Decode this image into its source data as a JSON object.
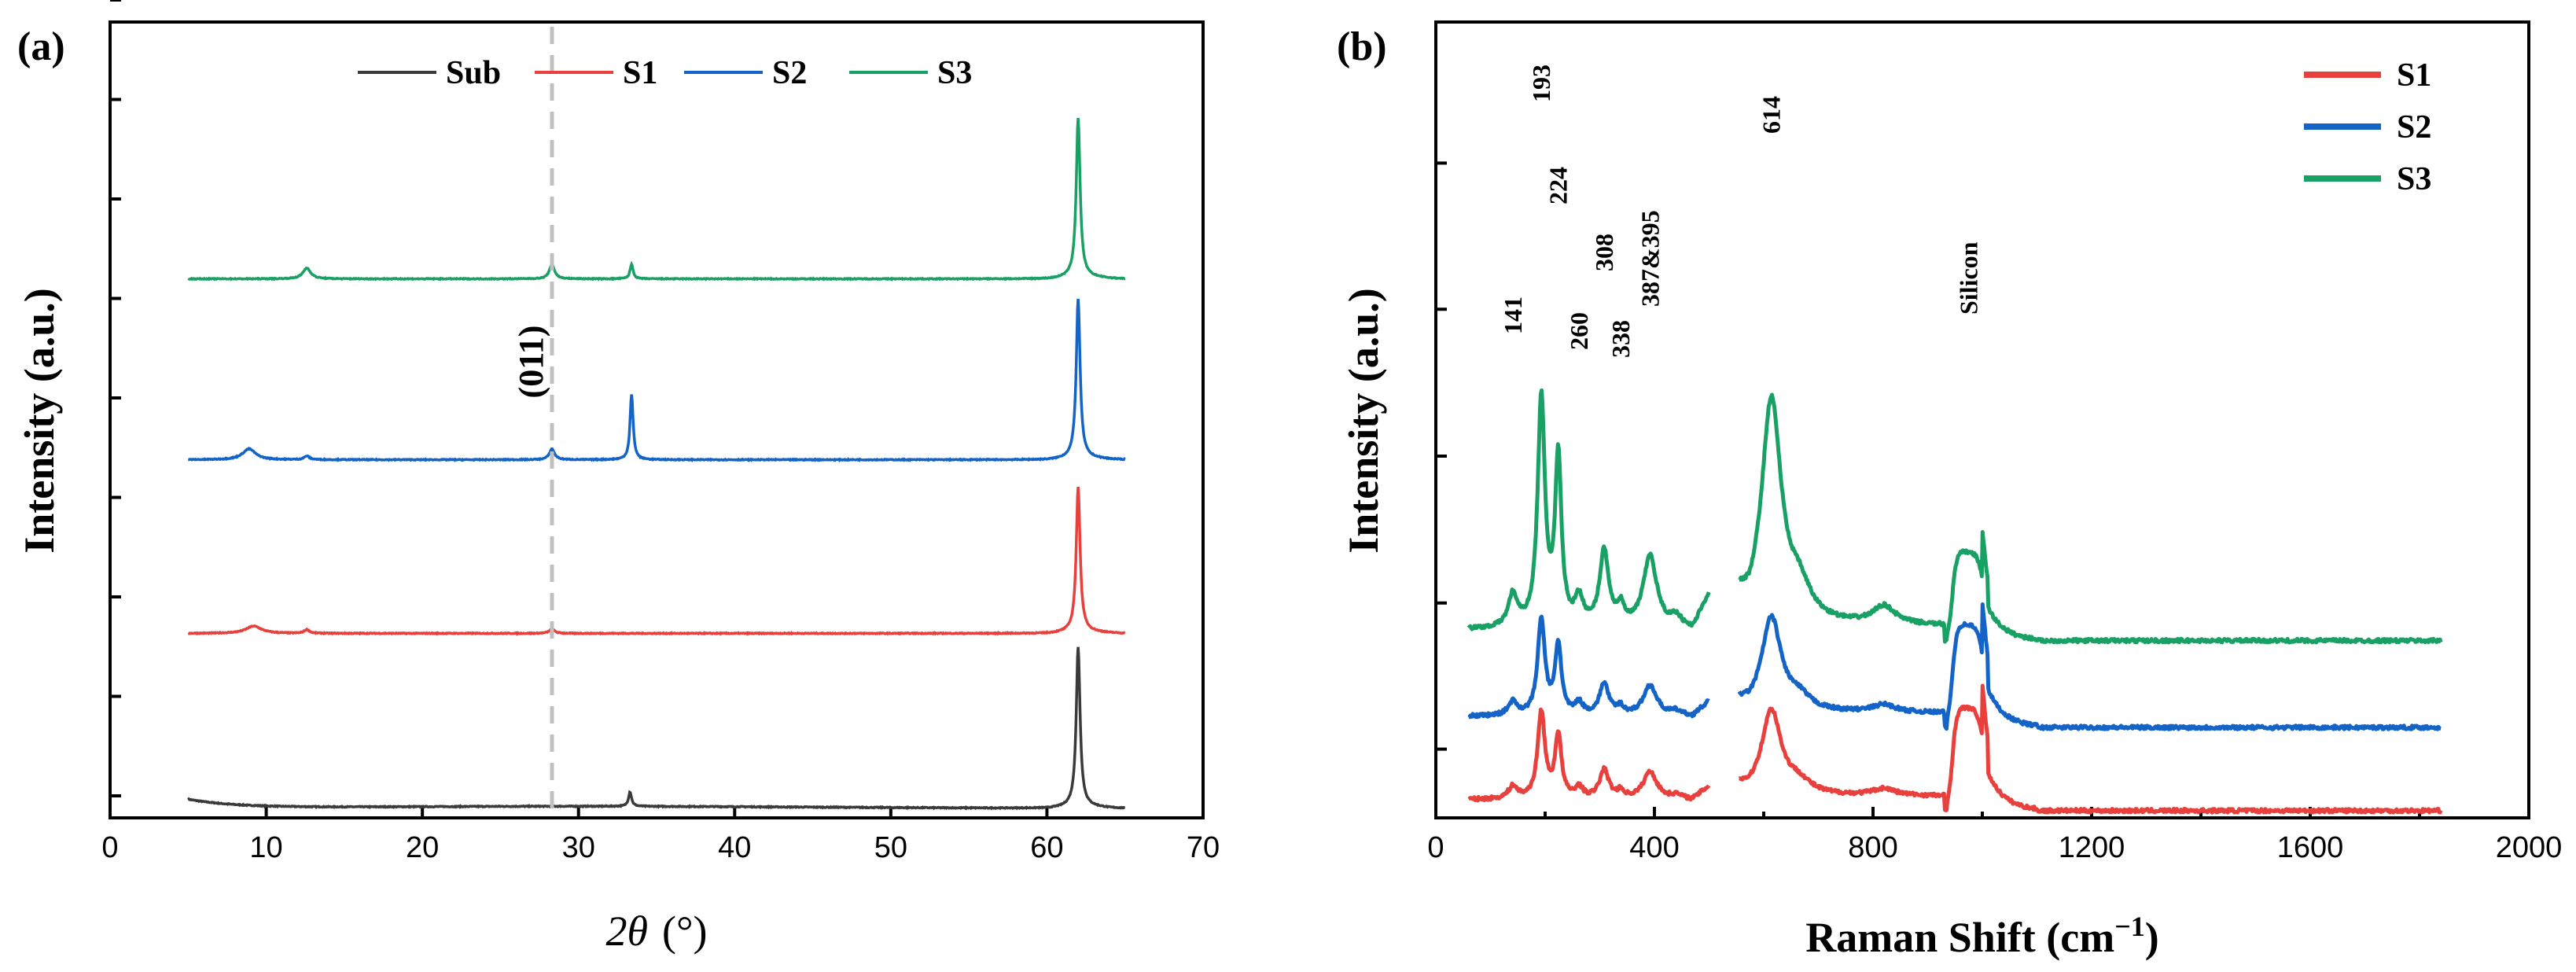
{
  "chart_data": [
    {
      "panel": "(a)",
      "type": "line",
      "xlabel_symbol": "2θ",
      "xlabel_unit": "(°)",
      "ylabel": "Intensity (a.u.)",
      "xlim": [
        0,
        70
      ],
      "xticks": [
        "0",
        "10",
        "20",
        "30",
        "40",
        "50",
        "60",
        "70"
      ],
      "ylim": [
        0,
        11
      ],
      "dashed_line_x": 28.3,
      "annotation": "(011)",
      "legend": [
        "Sub",
        "S1",
        "S2",
        "S3"
      ],
      "series": [
        {
          "name": "Sub",
          "color": "#3a3a3a",
          "offset": 0.15,
          "peaks": [
            {
              "x": 62.0,
              "h": 2.2,
              "w": 0.15
            },
            {
              "x": 33.3,
              "h": 0.2,
              "w": 0.12
            }
          ]
        },
        {
          "name": "S1",
          "color": "#e8403c",
          "offset": 2.55,
          "peaks": [
            {
              "x": 62.0,
              "h": 2.0,
              "w": 0.15
            },
            {
              "x": 9.2,
              "h": 0.1,
              "w": 0.6
            },
            {
              "x": 28.3,
              "h": 0.06,
              "w": 0.2
            },
            {
              "x": 12.6,
              "h": 0.05,
              "w": 0.2
            }
          ]
        },
        {
          "name": "S2",
          "color": "#1464c8",
          "offset": 4.95,
          "peaks": [
            {
              "x": 62.0,
              "h": 2.2,
              "w": 0.15
            },
            {
              "x": 33.4,
              "h": 0.9,
              "w": 0.12
            },
            {
              "x": 8.9,
              "h": 0.15,
              "w": 0.5
            },
            {
              "x": 28.3,
              "h": 0.15,
              "w": 0.2
            },
            {
              "x": 12.6,
              "h": 0.05,
              "w": 0.2
            }
          ]
        },
        {
          "name": "S3",
          "color": "#19a064",
          "offset": 7.45,
          "peaks": [
            {
              "x": 62.0,
              "h": 2.2,
              "w": 0.15
            },
            {
              "x": 12.6,
              "h": 0.15,
              "w": 0.3
            },
            {
              "x": 28.3,
              "h": 0.2,
              "w": 0.2
            },
            {
              "x": 33.4,
              "h": 0.2,
              "w": 0.12
            }
          ]
        }
      ]
    },
    {
      "panel": "(b)",
      "type": "line",
      "xlabel": "Raman Shift (cm",
      "xlabel_sup": "−1",
      "xlabel_end": ")",
      "ylabel": "Intensity (a.u.)",
      "xlim": [
        0,
        2000
      ],
      "xticks": [
        "0",
        "400",
        "800",
        "1200",
        "1600",
        "2000"
      ],
      "ylim": [
        0,
        11
      ],
      "legend": [
        "S1",
        "S2",
        "S3"
      ],
      "peak_labels": [
        "141",
        "193",
        "224",
        "260",
        "308",
        "338",
        "387&395",
        "614",
        "Silicon"
      ],
      "series": [
        {
          "name": "S1",
          "color": "#e8403c",
          "offset": 0.2,
          "scale": 0.38
        },
        {
          "name": "S2",
          "color": "#1464c8",
          "offset": 1.35,
          "scale": 0.42
        },
        {
          "name": "S3",
          "color": "#19a064",
          "offset": 2.55,
          "scale": 1.0
        }
      ]
    }
  ]
}
